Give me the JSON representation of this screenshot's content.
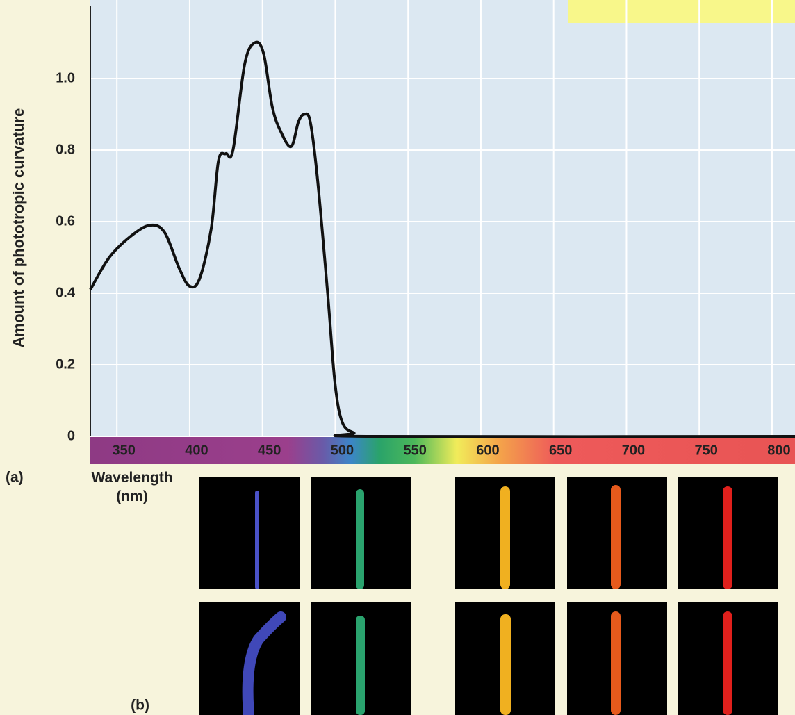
{
  "chart_data": {
    "type": "line",
    "y_label": "Amount of phototropic curvature",
    "x_label": "Wavelength (nm)",
    "panel_a": "(a)",
    "panel_b": "(b)",
    "x": [
      327,
      340,
      355,
      368,
      378,
      388,
      395,
      402,
      410,
      415,
      420,
      425,
      433,
      440,
      446,
      452,
      458,
      465,
      470,
      474,
      478,
      483,
      490,
      495,
      500,
      508,
      520,
      811
    ],
    "values": [
      0.41,
      0.5,
      0.56,
      0.59,
      0.57,
      0.47,
      0.42,
      0.44,
      0.58,
      0.77,
      0.79,
      0.8,
      1.04,
      1.1,
      1.07,
      0.92,
      0.85,
      0.81,
      0.88,
      0.9,
      0.88,
      0.72,
      0.4,
      0.15,
      0.04,
      0.01,
      0,
      0
    ],
    "color": "#111111",
    "xlim": [
      327,
      811
    ],
    "ylim": [
      0,
      1.2
    ],
    "xticks": [
      350,
      400,
      450,
      500,
      550,
      600,
      650,
      700,
      750,
      800
    ],
    "yticks": [
      0,
      0.2,
      0.4,
      0.6,
      0.8,
      {
        "value": 1,
        "label": "1.0"
      }
    ],
    "grid": true
  }
}
